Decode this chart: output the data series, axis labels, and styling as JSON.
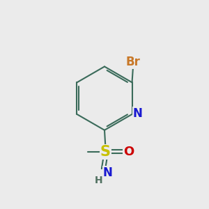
{
  "bg_color": "#ebebeb",
  "bond_color": "#3a6b5a",
  "bond_width": 1.5,
  "atom_colors": {
    "Br": "#c87828",
    "N_ring": "#1818d0",
    "S": "#c8c000",
    "O": "#cc0000",
    "N_imino": "#1818d0",
    "H": "#507060",
    "C": "#3a6b5a"
  },
  "font_size_main": 12,
  "font_size_small": 10,
  "figsize": [
    3.0,
    3.0
  ],
  "dpi": 100
}
